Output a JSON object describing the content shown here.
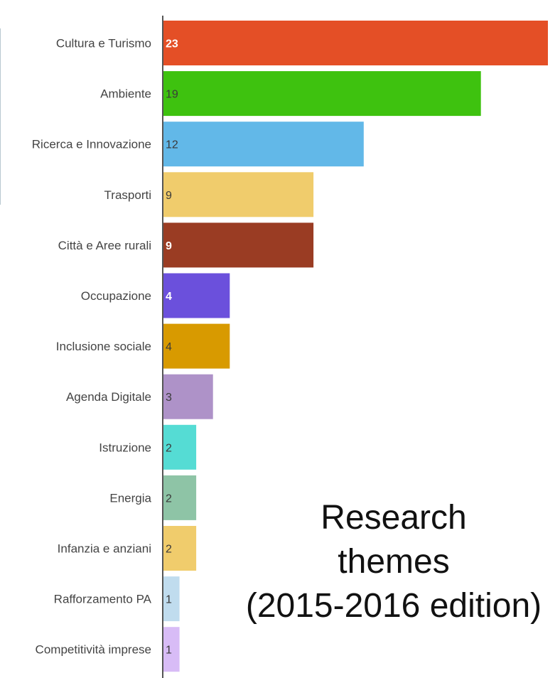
{
  "chart_data": {
    "type": "bar",
    "orientation": "horizontal",
    "categories": [
      "Cultura e Turismo",
      "Ambiente",
      "Ricerca e Innovazione",
      "Trasporti",
      "Città e Aree rurali",
      "Occupazione",
      "Inclusione sociale",
      "Agenda Digitale",
      "Istruzione",
      "Energia",
      "Infanzia e anziani",
      "Rafforzamento PA",
      "Competitività imprese"
    ],
    "values": [
      23,
      19,
      12,
      9,
      9,
      4,
      4,
      3,
      2,
      2,
      2,
      1,
      1
    ],
    "value_labels": [
      "23",
      "19",
      "12",
      "9",
      "9",
      "4",
      "4",
      "3",
      "2",
      "2",
      "2",
      "1",
      "1"
    ],
    "colors": [
      "#e44f26",
      "#3ec20f",
      "#62b8e8",
      "#f0cc6c",
      "#9a3c23",
      "#6b50dc",
      "#d89a00",
      "#ae92c8",
      "#55dcd4",
      "#8ec4a6",
      "#f0cc6c",
      "#c0dcee",
      "#d8bcf6"
    ],
    "value_label_colors": [
      "#ffffff",
      "#3a3a3a",
      "#3a3a3a",
      "#3a3a3a",
      "#ffffff",
      "#ffffff",
      "#3a3a3a",
      "#3a3a3a",
      "#3a3a3a",
      "#3a3a3a",
      "#3a3a3a",
      "#3a3a3a",
      "#3a3a3a"
    ],
    "xlim": [
      0,
      23
    ],
    "grid": false,
    "legend": "none"
  },
  "caption": {
    "line1": "Research",
    "line2": "themes",
    "line3": "(2015-2016 edition)"
  }
}
